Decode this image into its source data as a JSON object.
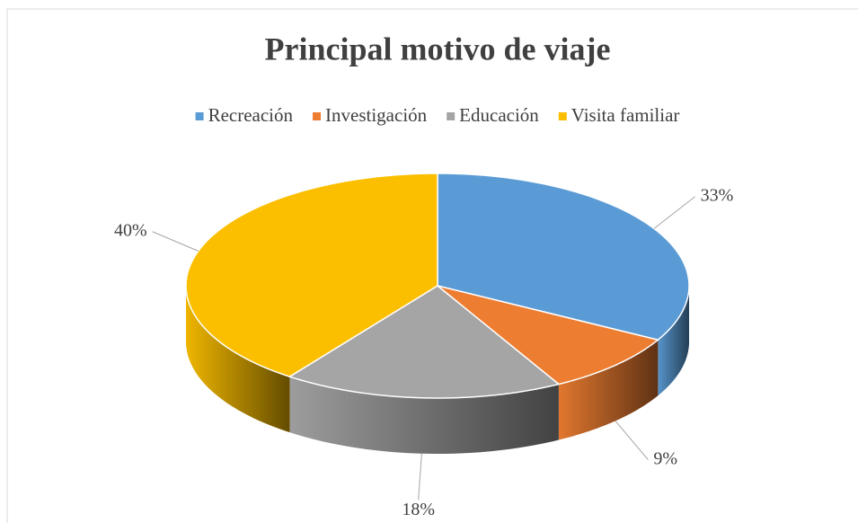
{
  "chart_data": {
    "type": "pie3d",
    "title": "Principal motivo de viaje",
    "categories": [
      "Recreación",
      "Investigación",
      "Educación",
      "Visita familiar"
    ],
    "values": [
      33,
      9,
      18,
      40
    ],
    "value_labels": [
      "33%",
      "9%",
      "18%",
      "40%"
    ],
    "colors": [
      "#5b9bd5",
      "#ed7d31",
      "#a5a5a5",
      "#fbbf00"
    ],
    "legend": "top"
  }
}
